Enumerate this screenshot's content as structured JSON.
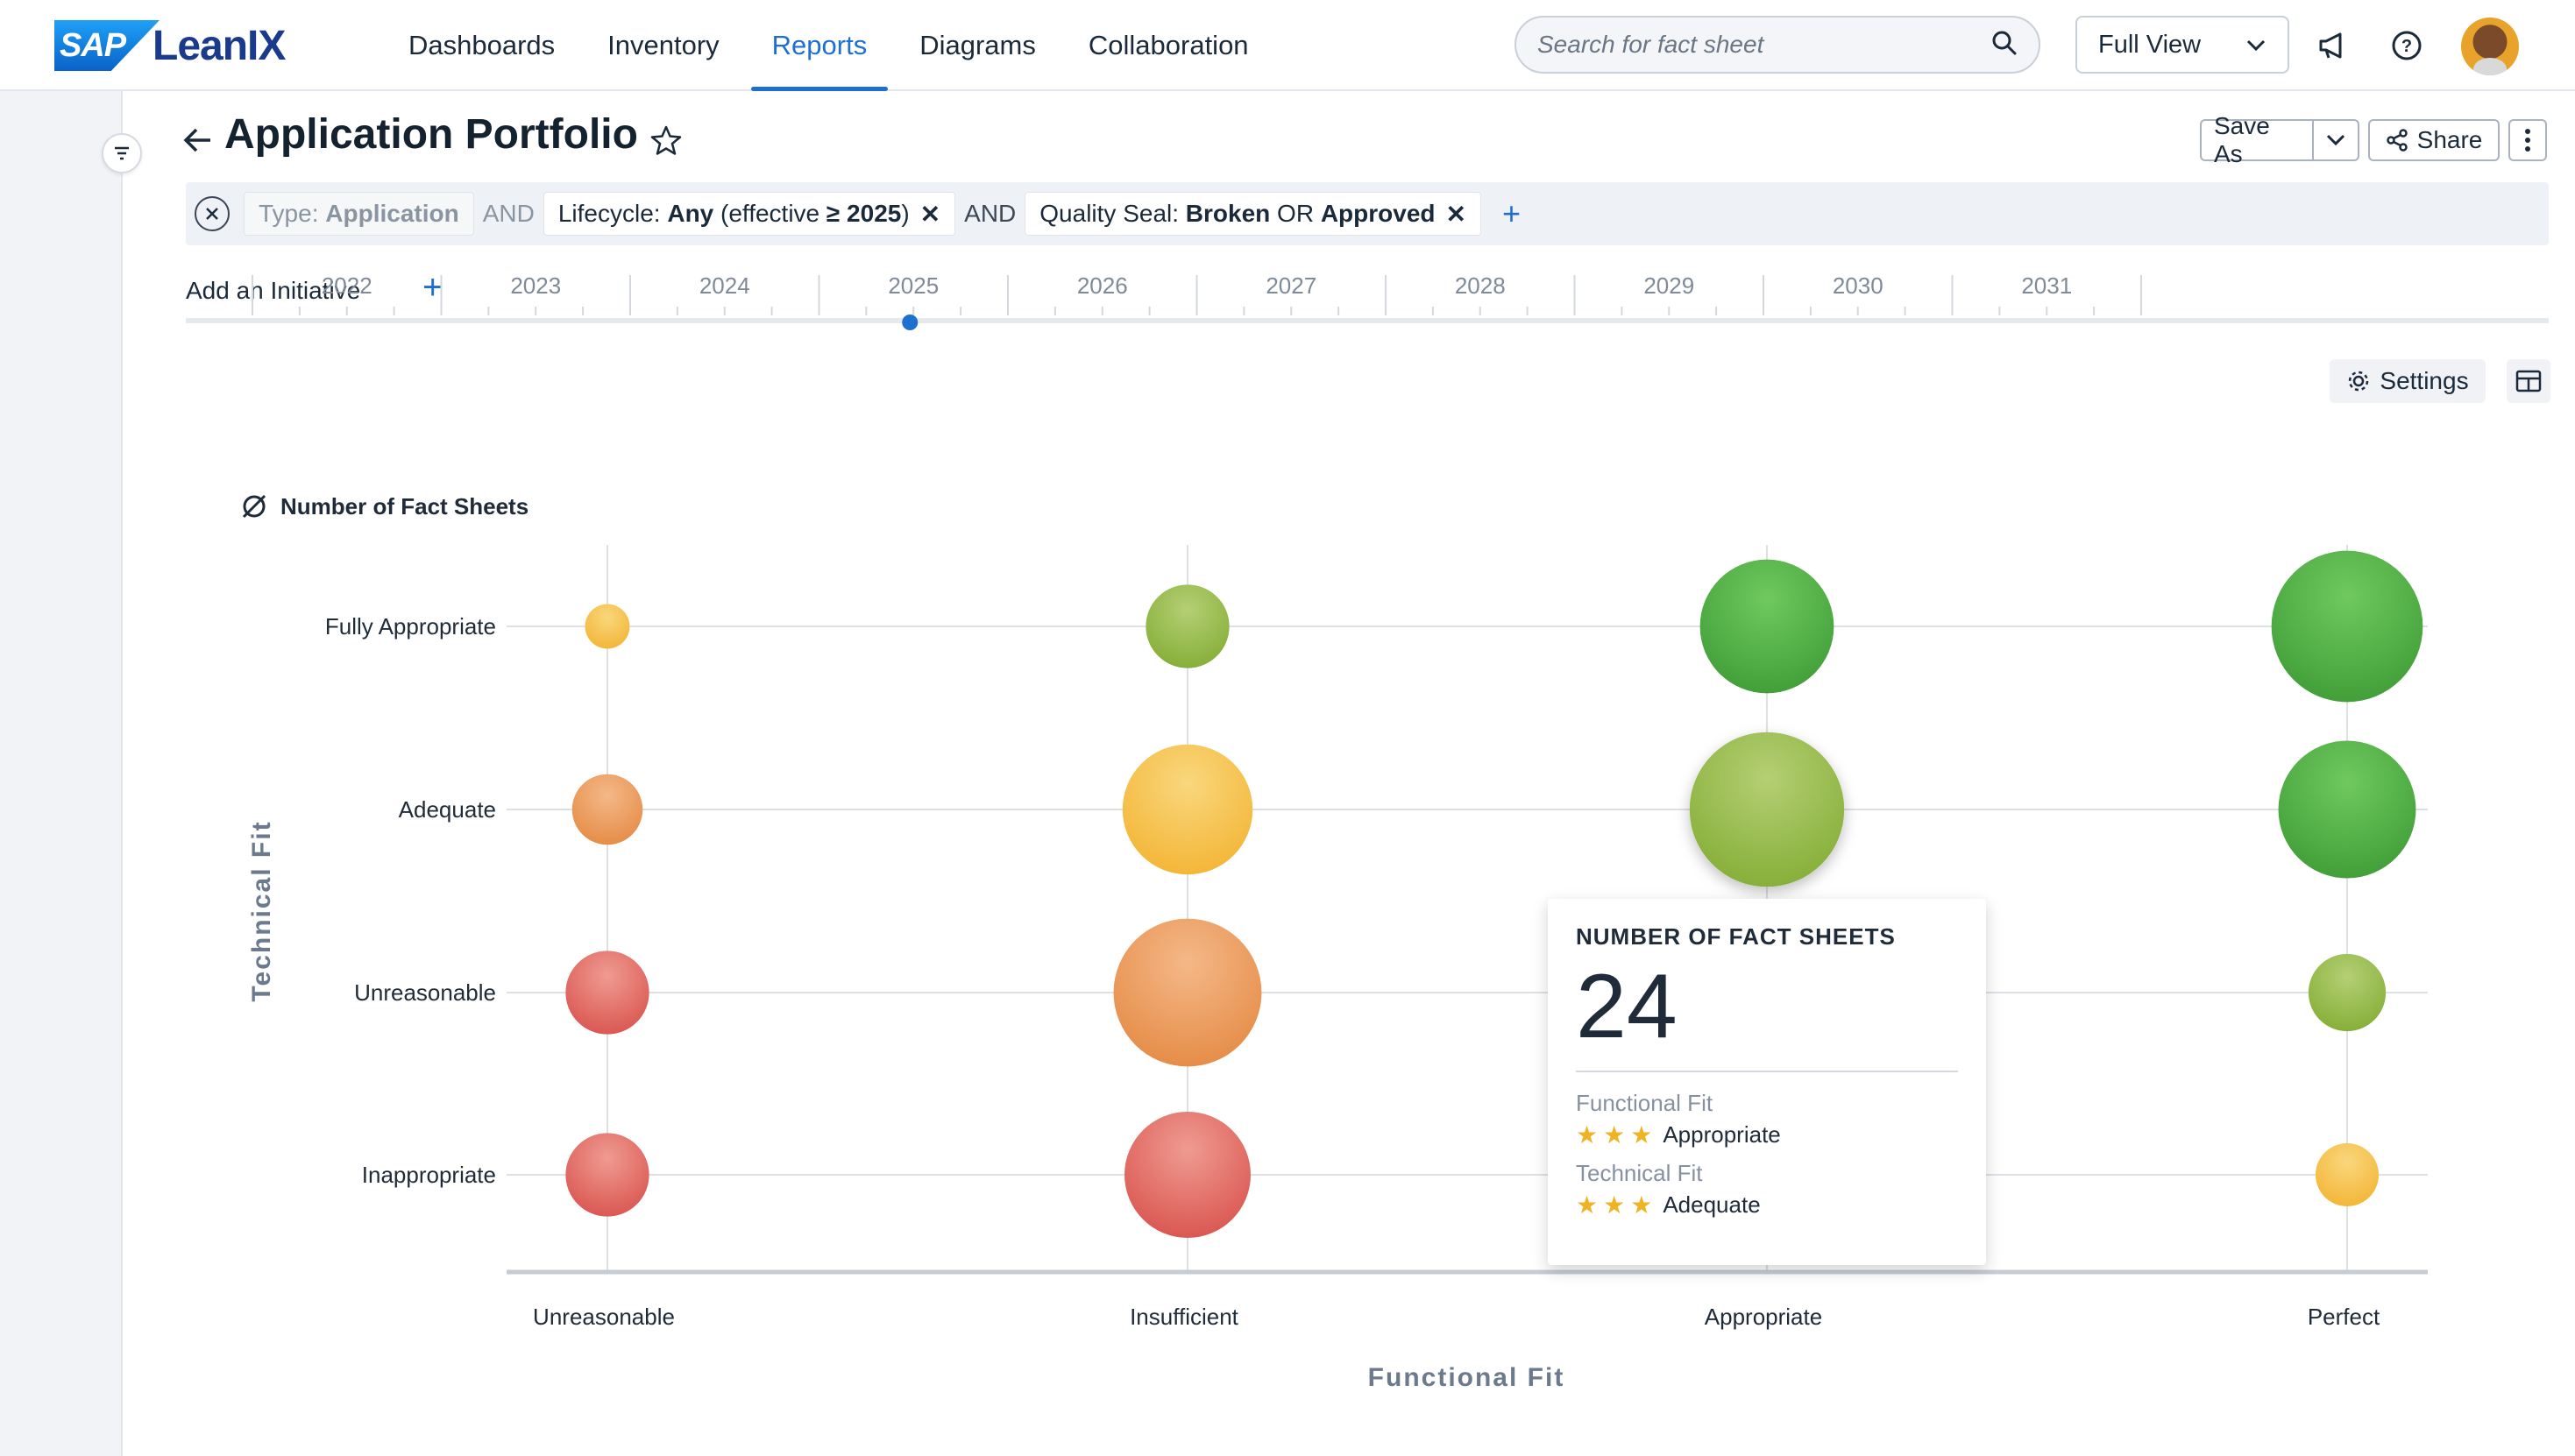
{
  "brand": {
    "sap": "SAP",
    "product": "LeanIX"
  },
  "nav": [
    {
      "label": "Dashboards"
    },
    {
      "label": "Inventory"
    },
    {
      "label": "Reports",
      "active": true
    },
    {
      "label": "Diagrams"
    },
    {
      "label": "Collaboration"
    }
  ],
  "search": {
    "placeholder": "Search for fact sheet"
  },
  "view_select": {
    "value": "Full View"
  },
  "page": {
    "title": "Application Portfolio"
  },
  "actions": {
    "save_as": "Save As",
    "share": "Share"
  },
  "filters": {
    "type": {
      "key": "Type:",
      "value": "Application"
    },
    "conj1": "AND",
    "lifecycle": {
      "key": "Lifecycle:",
      "value": "Any",
      "detail_pre": "(effective",
      "detail_val": "≥ 2025",
      "detail_post": ")"
    },
    "conj2": "AND",
    "quality": {
      "key": "Quality Seal:",
      "v1": "Broken",
      "op": "OR",
      "v2": "Approved"
    }
  },
  "timeline": {
    "add_initiative": "Add an Initiative",
    "years": [
      "2022",
      "2023",
      "2024",
      "2025",
      "2026",
      "2027",
      "2028",
      "2029",
      "2030",
      "2031"
    ],
    "selected_year": "2025"
  },
  "toolbar": {
    "settings": "Settings"
  },
  "colors": {
    "accent": "#1f6fd1",
    "red": "#e0605a",
    "orange": "#ec9a5b",
    "yellow": "#f6c14f",
    "olive": "#96bb4a",
    "green": "#52b043"
  },
  "chart_data": {
    "type": "bubble",
    "legend": "Number of Fact Sheets",
    "xlabel": "Functional Fit",
    "ylabel": "Technical Fit",
    "x_categories": [
      "Unreasonable",
      "Insufficient",
      "Appropriate",
      "Perfect"
    ],
    "y_categories": [
      "Inappropriate",
      "Unreasonable",
      "Adequate",
      "Fully Appropriate"
    ],
    "points": [
      {
        "x": "Unreasonable",
        "y": "Fully Appropriate",
        "value": 2,
        "color": "yellow"
      },
      {
        "x": "Insufficient",
        "y": "Fully Appropriate",
        "value": 7,
        "color": "olive"
      },
      {
        "x": "Appropriate",
        "y": "Fully Appropriate",
        "value": 18,
        "color": "green"
      },
      {
        "x": "Perfect",
        "y": "Fully Appropriate",
        "value": 23,
        "color": "green"
      },
      {
        "x": "Unreasonable",
        "y": "Adequate",
        "value": 5,
        "color": "orange"
      },
      {
        "x": "Insufficient",
        "y": "Adequate",
        "value": 17,
        "color": "yellow"
      },
      {
        "x": "Appropriate",
        "y": "Adequate",
        "value": 24,
        "color": "olive"
      },
      {
        "x": "Perfect",
        "y": "Adequate",
        "value": 19,
        "color": "green"
      },
      {
        "x": "Unreasonable",
        "y": "Unreasonable",
        "value": 7,
        "color": "red"
      },
      {
        "x": "Insufficient",
        "y": "Unreasonable",
        "value": 22,
        "color": "orange"
      },
      {
        "x": "Perfect",
        "y": "Unreasonable",
        "value": 6,
        "color": "olive"
      },
      {
        "x": "Unreasonable",
        "y": "Inappropriate",
        "value": 7,
        "color": "red"
      },
      {
        "x": "Insufficient",
        "y": "Inappropriate",
        "value": 16,
        "color": "red"
      },
      {
        "x": "Perfect",
        "y": "Inappropriate",
        "value": 4,
        "color": "yellow"
      }
    ],
    "tooltip": {
      "title": "NUMBER OF FACT SHEETS",
      "value": "24",
      "functional_label": "Functional Fit",
      "functional_value": "Appropriate",
      "technical_label": "Technical Fit",
      "technical_value": "Adequate"
    }
  }
}
